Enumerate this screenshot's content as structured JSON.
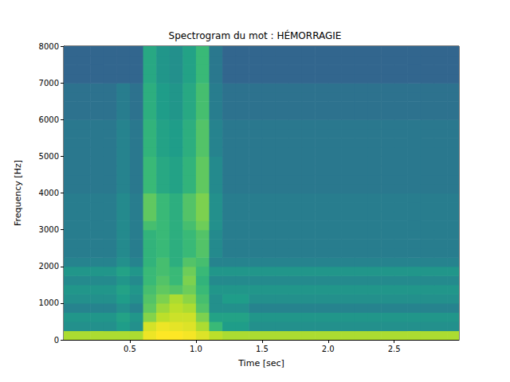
{
  "chart_data": {
    "type": "heatmap",
    "title": "Spectrogram du mot : HÉMORRAGIE",
    "xlabel": "Time [sec]",
    "ylabel": "Frequency [Hz]",
    "xlim": [
      0,
      2.99
    ],
    "ylim": [
      0,
      8000
    ],
    "xticks": [
      0.5,
      {
        "value": 1,
        "label": "1.0"
      },
      1.5,
      {
        "value": 2,
        "label": "2.0"
      },
      2.5
    ],
    "yticks": [
      0,
      1000,
      2000,
      3000,
      4000,
      5000,
      6000,
      7000,
      8000
    ],
    "grid": false,
    "zlim": [
      -120,
      -40
    ],
    "time_bins": [
      0,
      0.1,
      0.2,
      0.3,
      0.4,
      0.5,
      0.6,
      0.7,
      0.8,
      0.9,
      1.0,
      1.1,
      1.2,
      1.3,
      1.4,
      1.5,
      1.6,
      1.7,
      1.8,
      1.9,
      2.0,
      2.1,
      2.2,
      2.3,
      2.4,
      2.5,
      2.6,
      2.7,
      2.8,
      2.9,
      3.0
    ],
    "freq_bins": [
      0,
      250,
      500,
      750,
      1000,
      1250,
      1500,
      1750,
      2000,
      2250,
      2500,
      2750,
      3000,
      3250,
      3500,
      3750,
      4000,
      4250,
      4500,
      4750,
      5000,
      5250,
      5500,
      5750,
      6000,
      6250,
      6500,
      6750,
      7000,
      7250,
      7500,
      7750,
      8000
    ],
    "cells": [
      [
        -50,
        -50,
        -50,
        -50,
        -50,
        -50,
        -42,
        -40,
        -40,
        -41,
        -44,
        -48,
        -50,
        -50,
        -50,
        -50,
        -50,
        -50,
        -50,
        -50,
        -50,
        -50,
        -50,
        -50,
        -50,
        -50,
        -50,
        -50,
        -50,
        -50
      ],
      [
        -80,
        -80,
        -80,
        -80,
        -76,
        -80,
        -45,
        -42,
        -43,
        -44,
        -50,
        -66,
        -76,
        -76,
        -80,
        -80,
        -80,
        -80,
        -80,
        -80,
        -80,
        -80,
        -80,
        -80,
        -80,
        -80,
        -80,
        -80,
        -80,
        -80
      ],
      [
        -78,
        -78,
        -78,
        -78,
        -74,
        -78,
        -55,
        -48,
        -46,
        -46,
        -56,
        -74,
        -74,
        -74,
        -78,
        -78,
        -78,
        -78,
        -78,
        -78,
        -78,
        -78,
        -78,
        -78,
        -78,
        -78,
        -78,
        -78,
        -78,
        -78
      ],
      [
        -84,
        -84,
        -84,
        -84,
        -80,
        -84,
        -60,
        -52,
        -48,
        -50,
        -62,
        -80,
        -80,
        -80,
        -84,
        -84,
        -84,
        -84,
        -84,
        -84,
        -84,
        -84,
        -84,
        -84,
        -84,
        -84,
        -84,
        -84,
        -84,
        -84
      ],
      [
        -80,
        -80,
        -80,
        -80,
        -76,
        -80,
        -62,
        -56,
        -50,
        -54,
        -64,
        -80,
        -76,
        -76,
        -80,
        -80,
        -80,
        -80,
        -80,
        -80,
        -80,
        -80,
        -80,
        -80,
        -80,
        -80,
        -80,
        -80,
        -80,
        -80
      ],
      [
        -78,
        -78,
        -78,
        -78,
        -74,
        -78,
        -64,
        -60,
        -62,
        -58,
        -66,
        -78,
        -78,
        -78,
        -78,
        -78,
        -78,
        -78,
        -78,
        -78,
        -78,
        -78,
        -78,
        -78,
        -78,
        -78,
        -78,
        -78,
        -78,
        -78
      ],
      [
        -82,
        -82,
        -82,
        -82,
        -78,
        -82,
        -66,
        -62,
        -66,
        -56,
        -68,
        -82,
        -82,
        -82,
        -82,
        -82,
        -82,
        -82,
        -82,
        -82,
        -82,
        -82,
        -82,
        -82,
        -82,
        -82,
        -82,
        -82,
        -82,
        -82
      ],
      [
        -78,
        -78,
        -78,
        -78,
        -74,
        -78,
        -66,
        -64,
        -66,
        -58,
        -66,
        -78,
        -78,
        -78,
        -78,
        -78,
        -78,
        -78,
        -78,
        -78,
        -78,
        -78,
        -78,
        -78,
        -78,
        -78,
        -78,
        -78,
        -78,
        -78
      ],
      [
        -84,
        -84,
        -84,
        -84,
        -80,
        -84,
        -68,
        -64,
        -70,
        -62,
        -64,
        -84,
        -84,
        -84,
        -84,
        -84,
        -84,
        -84,
        -84,
        -84,
        -84,
        -84,
        -84,
        -84,
        -84,
        -84,
        -84,
        -84,
        -84,
        -84
      ],
      [
        -86,
        -86,
        -86,
        -86,
        -82,
        -86,
        -68,
        -66,
        -70,
        -66,
        -62,
        -82,
        -86,
        -86,
        -86,
        -86,
        -86,
        -86,
        -86,
        -86,
        -86,
        -86,
        -86,
        -86,
        -86,
        -86,
        -86,
        -86,
        -86,
        -86
      ],
      [
        -86,
        -86,
        -86,
        -86,
        -82,
        -86,
        -68,
        -66,
        -70,
        -66,
        -62,
        -82,
        -86,
        -86,
        -86,
        -86,
        -86,
        -86,
        -86,
        -86,
        -86,
        -86,
        -86,
        -86,
        -86,
        -86,
        -86,
        -86,
        -86,
        -86
      ],
      [
        -86,
        -86,
        -86,
        -86,
        -82,
        -86,
        -68,
        -66,
        -70,
        -66,
        -62,
        -82,
        -86,
        -86,
        -86,
        -86,
        -86,
        -86,
        -86,
        -86,
        -86,
        -86,
        -86,
        -86,
        -86,
        -86,
        -86,
        -86,
        -86,
        -86
      ],
      [
        -86,
        -86,
        -86,
        -86,
        -82,
        -86,
        -64,
        -66,
        -70,
        -64,
        -58,
        -80,
        -86,
        -86,
        -86,
        -86,
        -86,
        -86,
        -86,
        -86,
        -86,
        -86,
        -86,
        -86,
        -86,
        -86,
        -86,
        -86,
        -86,
        -86
      ],
      [
        -86,
        -86,
        -86,
        -86,
        -82,
        -86,
        -60,
        -66,
        -70,
        -62,
        -56,
        -80,
        -86,
        -86,
        -86,
        -86,
        -86,
        -86,
        -86,
        -86,
        -86,
        -86,
        -86,
        -86,
        -86,
        -86,
        -86,
        -86,
        -86,
        -86
      ],
      [
        -86,
        -86,
        -86,
        -86,
        -82,
        -86,
        -60,
        -66,
        -70,
        -62,
        -56,
        -80,
        -86,
        -86,
        -86,
        -86,
        -86,
        -86,
        -86,
        -86,
        -86,
        -86,
        -86,
        -86,
        -86,
        -86,
        -86,
        -86,
        -86,
        -86
      ],
      [
        -86,
        -86,
        -86,
        -86,
        -82,
        -86,
        -60,
        -66,
        -70,
        -62,
        -56,
        -80,
        -86,
        -86,
        -86,
        -86,
        -86,
        -86,
        -86,
        -86,
        -86,
        -86,
        -86,
        -86,
        -86,
        -86,
        -86,
        -86,
        -86,
        -86
      ],
      [
        -88,
        -88,
        -88,
        -88,
        -84,
        -88,
        -66,
        -72,
        -74,
        -68,
        -60,
        -82,
        -88,
        -88,
        -88,
        -88,
        -88,
        -88,
        -88,
        -88,
        -88,
        -88,
        -88,
        -88,
        -88,
        -88,
        -88,
        -88,
        -88,
        -88
      ],
      [
        -88,
        -88,
        -88,
        -88,
        -84,
        -88,
        -66,
        -72,
        -74,
        -68,
        -60,
        -82,
        -88,
        -88,
        -88,
        -88,
        -88,
        -88,
        -88,
        -88,
        -88,
        -88,
        -88,
        -88,
        -88,
        -88,
        -88,
        -88,
        -88,
        -88
      ],
      [
        -88,
        -88,
        -88,
        -88,
        -84,
        -88,
        -66,
        -72,
        -74,
        -68,
        -60,
        -82,
        -88,
        -88,
        -88,
        -88,
        -88,
        -88,
        -88,
        -88,
        -88,
        -88,
        -88,
        -88,
        -88,
        -88,
        -88,
        -88,
        -88,
        -88
      ],
      [
        -88,
        -88,
        -88,
        -88,
        -84,
        -88,
        -66,
        -72,
        -74,
        -68,
        -60,
        -82,
        -88,
        -88,
        -88,
        -88,
        -88,
        -88,
        -88,
        -88,
        -88,
        -88,
        -88,
        -88,
        -88,
        -88,
        -88,
        -88,
        -88,
        -88
      ],
      [
        -88,
        -88,
        -88,
        -88,
        -84,
        -88,
        -68,
        -74,
        -76,
        -70,
        -62,
        -84,
        -88,
        -88,
        -88,
        -88,
        -88,
        -88,
        -88,
        -88,
        -88,
        -88,
        -88,
        -88,
        -88,
        -88,
        -88,
        -88,
        -88,
        -88
      ],
      [
        -88,
        -88,
        -88,
        -88,
        -84,
        -88,
        -68,
        -74,
        -76,
        -70,
        -62,
        -84,
        -88,
        -88,
        -88,
        -88,
        -88,
        -88,
        -88,
        -88,
        -88,
        -88,
        -88,
        -88,
        -88,
        -88,
        -88,
        -88,
        -88,
        -88
      ],
      [
        -88,
        -88,
        -88,
        -88,
        -84,
        -88,
        -68,
        -74,
        -76,
        -70,
        -62,
        -84,
        -88,
        -88,
        -88,
        -88,
        -88,
        -88,
        -88,
        -88,
        -88,
        -88,
        -88,
        -88,
        -88,
        -88,
        -88,
        -88,
        -88,
        -88
      ],
      [
        -88,
        -88,
        -88,
        -88,
        -84,
        -88,
        -68,
        -74,
        -76,
        -70,
        -62,
        -84,
        -88,
        -88,
        -88,
        -88,
        -88,
        -88,
        -88,
        -88,
        -88,
        -88,
        -88,
        -88,
        -88,
        -88,
        -88,
        -88,
        -88,
        -88
      ],
      [
        -90,
        -90,
        -90,
        -90,
        -86,
        -90,
        -70,
        -76,
        -78,
        -72,
        -64,
        -86,
        -90,
        -90,
        -90,
        -90,
        -90,
        -90,
        -90,
        -90,
        -90,
        -90,
        -90,
        -90,
        -90,
        -90,
        -90,
        -90,
        -90,
        -90
      ],
      [
        -90,
        -90,
        -90,
        -90,
        -86,
        -90,
        -70,
        -76,
        -78,
        -72,
        -64,
        -86,
        -90,
        -90,
        -90,
        -90,
        -90,
        -90,
        -90,
        -90,
        -90,
        -90,
        -90,
        -90,
        -90,
        -90,
        -90,
        -90,
        -90,
        -90
      ],
      [
        -90,
        -90,
        -90,
        -90,
        -86,
        -90,
        -70,
        -76,
        -78,
        -72,
        -64,
        -86,
        -90,
        -90,
        -90,
        -90,
        -90,
        -90,
        -90,
        -90,
        -90,
        -90,
        -90,
        -90,
        -90,
        -90,
        -90,
        -90,
        -90,
        -90
      ],
      [
        -90,
        -90,
        -90,
        -90,
        -86,
        -90,
        -70,
        -76,
        -78,
        -72,
        -64,
        -86,
        -90,
        -90,
        -90,
        -90,
        -90,
        -90,
        -90,
        -90,
        -90,
        -90,
        -90,
        -90,
        -90,
        -90,
        -90,
        -90,
        -90,
        -90
      ],
      [
        -94,
        -94,
        -94,
        -94,
        -94,
        -94,
        -72,
        -78,
        -80,
        -74,
        -66,
        -88,
        -94,
        -94,
        -94,
        -94,
        -94,
        -94,
        -94,
        -94,
        -94,
        -94,
        -94,
        -94,
        -94,
        -94,
        -94,
        -94,
        -94,
        -94
      ],
      [
        -94,
        -94,
        -94,
        -94,
        -94,
        -94,
        -72,
        -78,
        -80,
        -74,
        -66,
        -88,
        -94,
        -94,
        -94,
        -94,
        -94,
        -94,
        -94,
        -94,
        -94,
        -94,
        -94,
        -94,
        -94,
        -94,
        -94,
        -94,
        -94,
        -94
      ],
      [
        -94,
        -94,
        -94,
        -94,
        -94,
        -94,
        -72,
        -78,
        -80,
        -74,
        -66,
        -88,
        -94,
        -94,
        -94,
        -94,
        -94,
        -94,
        -94,
        -94,
        -94,
        -94,
        -94,
        -94,
        -94,
        -94,
        -94,
        -94,
        -94,
        -94
      ],
      [
        -94,
        -94,
        -94,
        -94,
        -94,
        -94,
        -72,
        -78,
        -80,
        -74,
        -66,
        -88,
        -94,
        -94,
        -94,
        -94,
        -94,
        -94,
        -94,
        -94,
        -94,
        -94,
        -94,
        -94,
        -94,
        -94,
        -94,
        -94,
        -94,
        -94
      ]
    ]
  }
}
